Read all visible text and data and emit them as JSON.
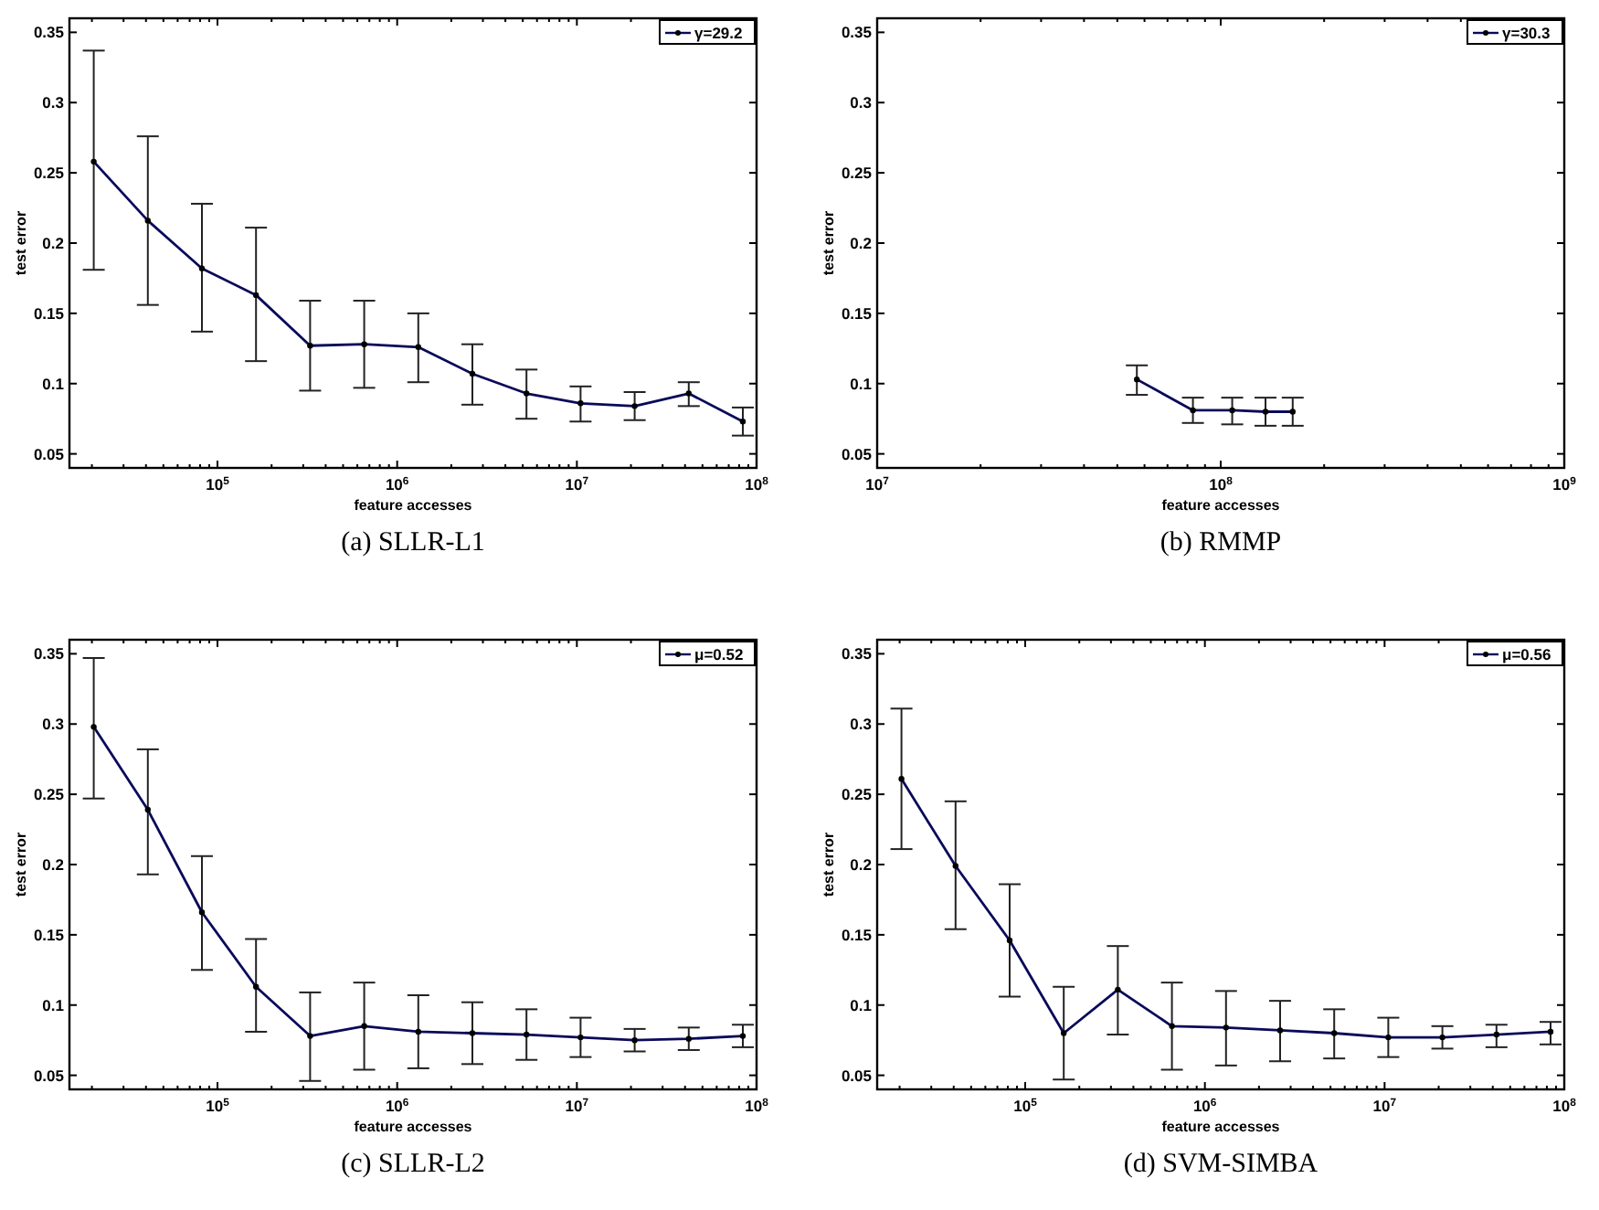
{
  "chart_data": [
    {
      "type": "line",
      "title": "(a) SLLR-L1",
      "xlabel": "feature accesses",
      "ylabel": "test error",
      "log": "x",
      "legend": "top right",
      "marker": "circle",
      "x": [
        20480,
        40960,
        81920,
        163840,
        327680,
        655360,
        1310720,
        2621440,
        5242880,
        10485760,
        20971520,
        41943040,
        83886080
      ],
      "xlim": [
        15000,
        100000000
      ],
      "xticks": [
        {
          "value": 100000,
          "label": "10$^{5}$"
        },
        {
          "value": 1000000,
          "label": "10$^{6}$"
        },
        {
          "value": 10000000,
          "label": "10$^{7}$"
        },
        {
          "value": 100000000,
          "label": "10$^{8}$"
        }
      ],
      "ylim": [
        0.04,
        0.36
      ],
      "yticks": [
        0.05,
        0.1,
        0.15,
        0.2,
        0.25,
        0.3,
        0.35
      ],
      "series": [
        {
          "name": "γ=29.2",
          "color": "#0a0a5a",
          "values": [
            0.258,
            0.216,
            0.182,
            0.163,
            0.127,
            0.128,
            0.126,
            0.107,
            0.093,
            0.086,
            0.084,
            0.093,
            0.073
          ],
          "errors": [
            [
              0.181,
              0.337
            ],
            [
              0.156,
              0.276
            ],
            [
              0.137,
              0.228
            ],
            [
              0.116,
              0.211
            ],
            [
              0.095,
              0.159
            ],
            [
              0.097,
              0.159
            ],
            [
              0.101,
              0.15
            ],
            [
              0.085,
              0.128
            ],
            [
              0.075,
              0.11
            ],
            [
              0.073,
              0.098
            ],
            [
              0.074,
              0.094
            ],
            [
              0.084,
              0.101
            ],
            [
              0.063,
              0.083
            ]
          ]
        }
      ]
    },
    {
      "type": "line",
      "title": "(b) RMMP",
      "xlabel": "feature accesses",
      "ylabel": "test error",
      "log": "x",
      "legend": "top right",
      "marker": "circle",
      "x": [
        57000000,
        83000000,
        108000000,
        135000000,
        162000000
      ],
      "xlim": [
        10000000,
        1000000000
      ],
      "xticks": [
        {
          "value": 10000000,
          "label": "10$^{7}$"
        },
        {
          "value": 100000000,
          "label": "10$^{8}$"
        },
        {
          "value": 1000000000,
          "label": "10$^{9}$"
        }
      ],
      "ylim": [
        0.04,
        0.36
      ],
      "yticks": [
        0.05,
        0.1,
        0.15,
        0.2,
        0.25,
        0.3,
        0.35
      ],
      "series": [
        {
          "name": "γ=30.3",
          "color": "#0a0a5a",
          "values": [
            0.103,
            0.081,
            0.081,
            0.08,
            0.08
          ],
          "errors": [
            [
              0.092,
              0.113
            ],
            [
              0.072,
              0.09
            ],
            [
              0.071,
              0.09
            ],
            [
              0.07,
              0.09
            ],
            [
              0.07,
              0.09
            ]
          ]
        }
      ]
    },
    {
      "type": "line",
      "title": "(c) SLLR-L2",
      "xlabel": "feature accesses",
      "ylabel": "test error",
      "log": "x",
      "legend": "top right",
      "marker": "circle",
      "x": [
        20480,
        40960,
        81920,
        163840,
        327680,
        655360,
        1310720,
        2621440,
        5242880,
        10485760,
        20971520,
        41943040,
        83886080
      ],
      "xlim": [
        15000,
        100000000
      ],
      "xticks": [
        {
          "value": 100000,
          "label": "10$^{5}$"
        },
        {
          "value": 1000000,
          "label": "10$^{6}$"
        },
        {
          "value": 10000000,
          "label": "10$^{7}$"
        },
        {
          "value": 100000000,
          "label": "10$^{8}$"
        }
      ],
      "ylim": [
        0.04,
        0.36
      ],
      "yticks": [
        0.05,
        0.1,
        0.15,
        0.2,
        0.25,
        0.3,
        0.35
      ],
      "series": [
        {
          "name": "μ=0.52",
          "color": "#0a0a5a",
          "values": [
            0.298,
            0.239,
            0.166,
            0.113,
            0.078,
            0.085,
            0.081,
            0.08,
            0.079,
            0.077,
            0.075,
            0.076,
            0.078
          ],
          "errors": [
            [
              0.247,
              0.347
            ],
            [
              0.193,
              0.282
            ],
            [
              0.125,
              0.206
            ],
            [
              0.081,
              0.147
            ],
            [
              0.046,
              0.109
            ],
            [
              0.054,
              0.116
            ],
            [
              0.055,
              0.107
            ],
            [
              0.058,
              0.102
            ],
            [
              0.061,
              0.097
            ],
            [
              0.063,
              0.091
            ],
            [
              0.067,
              0.083
            ],
            [
              0.068,
              0.084
            ],
            [
              0.07,
              0.086
            ]
          ]
        }
      ]
    },
    {
      "type": "line",
      "title": "(d) SVM-SIMBA",
      "xlabel": "feature accesses",
      "ylabel": "test error",
      "log": "x",
      "legend": "top right",
      "marker": "circle",
      "x": [
        20480,
        40960,
        81920,
        163840,
        327680,
        655360,
        1310720,
        2621440,
        5242880,
        10485760,
        20971520,
        41943040,
        83886080
      ],
      "xlim": [
        15000,
        100000000
      ],
      "xticks": [
        {
          "value": 100000,
          "label": "10$^{5}$"
        },
        {
          "value": 1000000,
          "label": "10$^{6}$"
        },
        {
          "value": 10000000,
          "label": "10$^{7}$"
        },
        {
          "value": 100000000,
          "label": "10$^{8}$"
        }
      ],
      "ylim": [
        0.04,
        0.36
      ],
      "yticks": [
        0.05,
        0.1,
        0.15,
        0.2,
        0.25,
        0.3,
        0.35
      ],
      "series": [
        {
          "name": "μ=0.56",
          "color": "#0a0a5a",
          "values": [
            0.261,
            0.199,
            0.146,
            0.08,
            0.111,
            0.085,
            0.084,
            0.082,
            0.08,
            0.077,
            0.077,
            0.079,
            0.081
          ],
          "errors": [
            [
              0.211,
              0.311
            ],
            [
              0.154,
              0.245
            ],
            [
              0.106,
              0.186
            ],
            [
              0.047,
              0.113
            ],
            [
              0.079,
              0.142
            ],
            [
              0.054,
              0.116
            ],
            [
              0.057,
              0.11
            ],
            [
              0.06,
              0.103
            ],
            [
              0.062,
              0.097
            ],
            [
              0.063,
              0.091
            ],
            [
              0.069,
              0.085
            ],
            [
              0.07,
              0.086
            ],
            [
              0.072,
              0.088
            ]
          ]
        }
      ]
    }
  ]
}
